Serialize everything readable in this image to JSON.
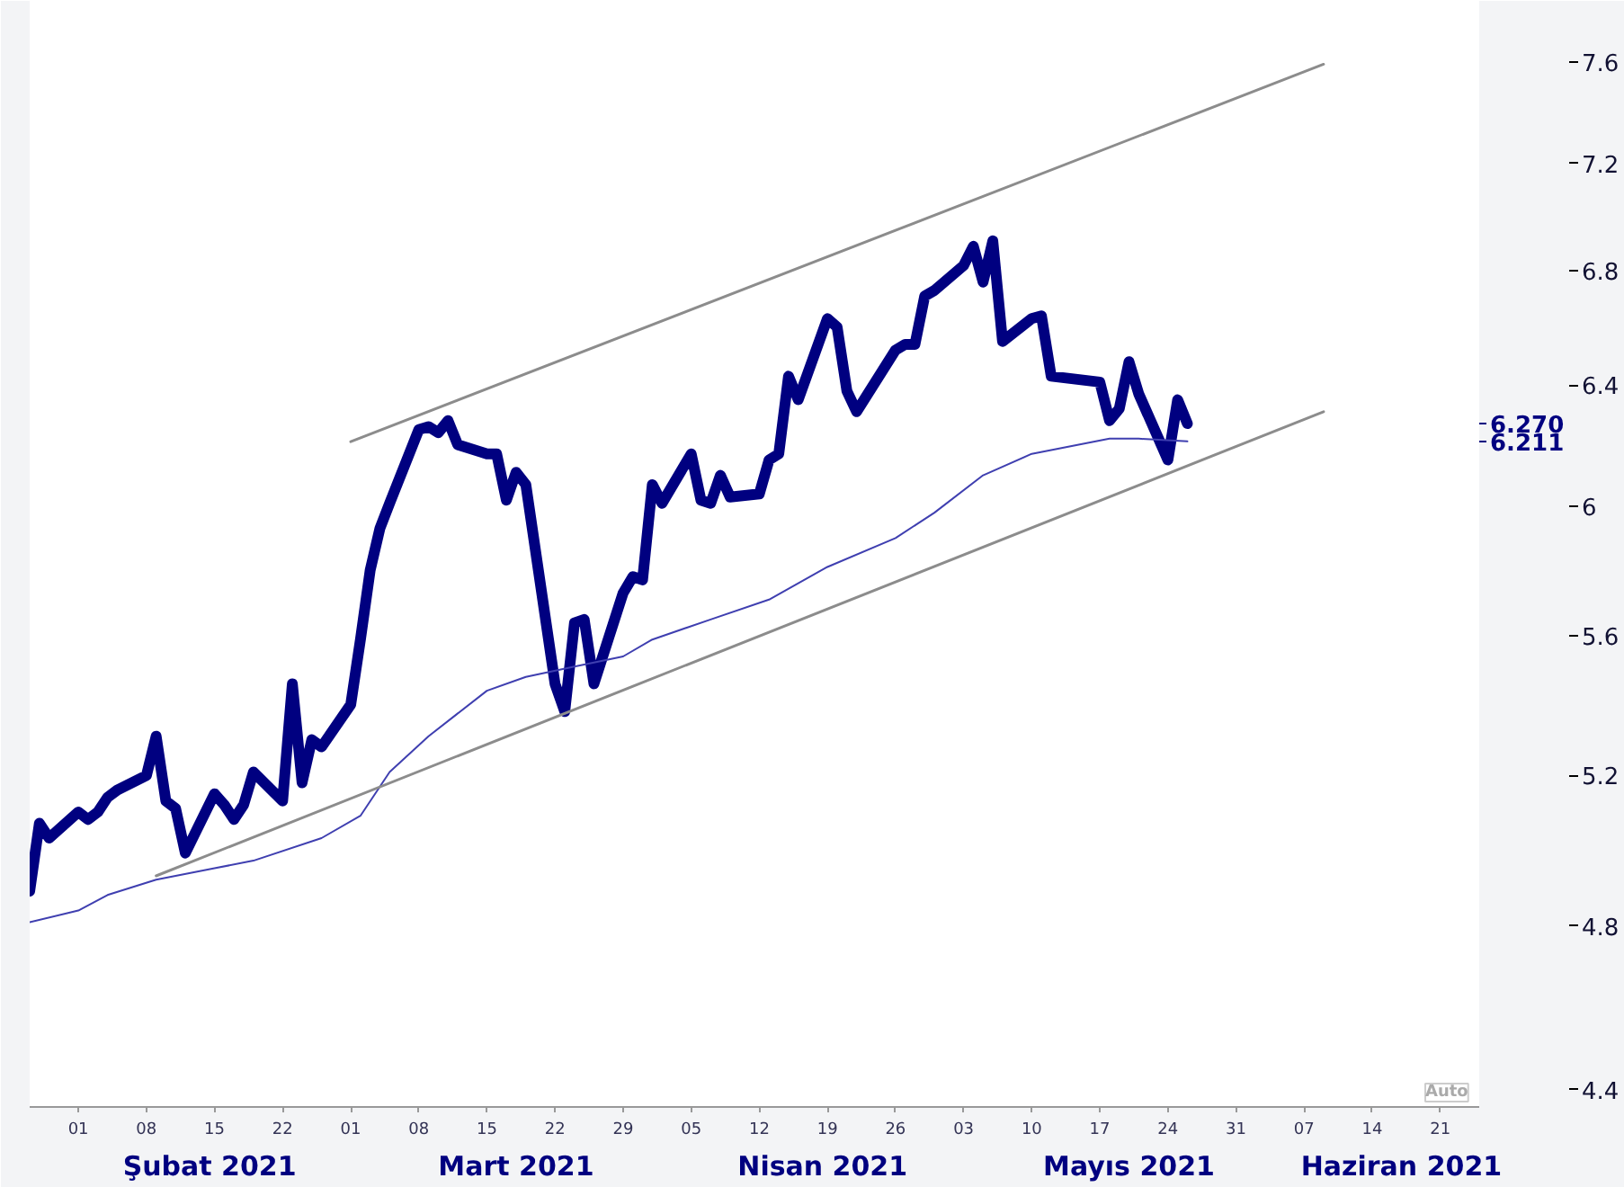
{
  "chart_data": {
    "type": "line",
    "log": true,
    "grid": false,
    "xlim": [
      "2021-01-27",
      "2021-06-25"
    ],
    "ylim": [
      4.36,
      7.85
    ],
    "yticks": [
      4.4,
      4.8,
      5.2,
      5.6,
      6,
      6.4,
      6.8,
      7.2,
      7.6
    ],
    "xticks": [
      {
        "value": "2021-02-01",
        "label": "01"
      },
      {
        "value": "2021-02-08",
        "label": "08"
      },
      {
        "value": "2021-02-15",
        "label": "15"
      },
      {
        "value": "2021-02-22",
        "label": "22"
      },
      {
        "value": "2021-03-01",
        "label": "01"
      },
      {
        "value": "2021-03-08",
        "label": "08"
      },
      {
        "value": "2021-03-15",
        "label": "15"
      },
      {
        "value": "2021-03-22",
        "label": "22"
      },
      {
        "value": "2021-03-29",
        "label": "29"
      },
      {
        "value": "2021-04-05",
        "label": "05"
      },
      {
        "value": "2021-04-12",
        "label": "12"
      },
      {
        "value": "2021-04-19",
        "label": "19"
      },
      {
        "value": "2021-04-26",
        "label": "26"
      },
      {
        "value": "2021-05-03",
        "label": "03"
      },
      {
        "value": "2021-05-10",
        "label": "10"
      },
      {
        "value": "2021-05-17",
        "label": "17"
      },
      {
        "value": "2021-05-24",
        "label": "24"
      },
      {
        "value": "2021-05-31",
        "label": "31"
      },
      {
        "value": "2021-06-07",
        "label": "07"
      },
      {
        "value": "2021-06-14",
        "label": "14"
      },
      {
        "value": "2021-06-21",
        "label": "21"
      }
    ],
    "series": [
      {
        "color": "#000080",
        "x": [
          "2021-01-27",
          "2021-01-28",
          "2021-01-29",
          "2021-02-01",
          "2021-02-02",
          "2021-02-03",
          "2021-02-04",
          "2021-02-05",
          "2021-02-08",
          "2021-02-09",
          "2021-02-10",
          "2021-02-11",
          "2021-02-12",
          "2021-02-15",
          "2021-02-16",
          "2021-02-17",
          "2021-02-18",
          "2021-02-19",
          "2021-02-22",
          "2021-02-23",
          "2021-02-24",
          "2021-02-25",
          "2021-02-26",
          "2021-03-01",
          "2021-03-02",
          "2021-03-03",
          "2021-03-04",
          "2021-03-05",
          "2021-03-08",
          "2021-03-09",
          "2021-03-10",
          "2021-03-11",
          "2021-03-12",
          "2021-03-15",
          "2021-03-16",
          "2021-03-17",
          "2021-03-18",
          "2021-03-19",
          "2021-03-22",
          "2021-03-23",
          "2021-03-24",
          "2021-03-25",
          "2021-03-26",
          "2021-03-29",
          "2021-03-30",
          "2021-03-31",
          "2021-04-01",
          "2021-04-02",
          "2021-04-05",
          "2021-04-06",
          "2021-04-07",
          "2021-04-08",
          "2021-04-09",
          "2021-04-12",
          "2021-04-13",
          "2021-04-14",
          "2021-04-15",
          "2021-04-16",
          "2021-04-19",
          "2021-04-20",
          "2021-04-21",
          "2021-04-22",
          "2021-04-26",
          "2021-04-27",
          "2021-04-28",
          "2021-04-29",
          "2021-04-30",
          "2021-05-03",
          "2021-05-04",
          "2021-05-05",
          "2021-05-06",
          "2021-05-07",
          "2021-05-10",
          "2021-05-11",
          "2021-05-12",
          "2021-05-17",
          "2021-05-18",
          "2021-05-19",
          "2021-05-20",
          "2021-05-21",
          "2021-05-24",
          "2021-05-25",
          "2021-05-26"
        ],
        "values": [
          4.89,
          5.07,
          5.03,
          5.1,
          5.08,
          5.1,
          5.14,
          5.16,
          5.2,
          5.31,
          5.13,
          5.11,
          4.99,
          5.15,
          5.12,
          5.08,
          5.12,
          5.21,
          5.13,
          5.46,
          5.18,
          5.3,
          5.28,
          5.4,
          5.59,
          5.8,
          5.93,
          6.01,
          6.25,
          6.26,
          6.24,
          6.28,
          6.2,
          6.17,
          6.17,
          6.02,
          6.11,
          6.07,
          5.46,
          5.38,
          5.64,
          5.65,
          5.46,
          5.73,
          5.78,
          5.77,
          6.07,
          6.01,
          6.17,
          6.02,
          6.01,
          6.1,
          6.03,
          6.04,
          6.15,
          6.17,
          6.43,
          6.35,
          6.63,
          6.6,
          6.38,
          6.31,
          6.52,
          6.54,
          6.54,
          6.71,
          6.73,
          6.82,
          6.89,
          6.76,
          6.91,
          6.55,
          6.63,
          6.64,
          6.43,
          6.41,
          6.28,
          6.32,
          6.48,
          6.37,
          6.15,
          6.35,
          6.27
        ]
      },
      {
        "color": "#3f3fb0",
        "x": [
          "2021-01-27",
          "2021-02-01",
          "2021-02-04",
          "2021-02-09",
          "2021-02-15",
          "2021-02-19",
          "2021-02-26",
          "2021-03-02",
          "2021-03-05",
          "2021-03-09",
          "2021-03-15",
          "2021-03-19",
          "2021-03-24",
          "2021-03-29",
          "2021-04-01",
          "2021-04-07",
          "2021-04-13",
          "2021-04-19",
          "2021-04-26",
          "2021-04-30",
          "2021-05-05",
          "2021-05-10",
          "2021-05-18",
          "2021-05-21",
          "2021-05-26"
        ],
        "values": [
          4.81,
          4.84,
          4.88,
          4.92,
          4.95,
          4.97,
          5.03,
          5.09,
          5.21,
          5.31,
          5.44,
          5.48,
          5.51,
          5.54,
          5.59,
          5.65,
          5.71,
          5.81,
          5.9,
          5.98,
          6.1,
          6.17,
          6.22,
          6.22,
          6.211
        ]
      },
      {
        "color": "#8c8c8c",
        "x": [
          "2021-03-01",
          "2021-06-09"
        ],
        "values": [
          6.21,
          7.59
        ]
      },
      {
        "color": "#8c8c8c",
        "x": [
          "2021-02-09",
          "2021-06-09"
        ],
        "values": [
          4.93,
          6.31
        ]
      }
    ],
    "annotations": [
      "Şubat 2021",
      "Mart 2021",
      "Nisan 2021",
      "Mayıs 2021",
      "Haziran 2021",
      "6.270",
      "6.211",
      "Auto"
    ]
  }
}
